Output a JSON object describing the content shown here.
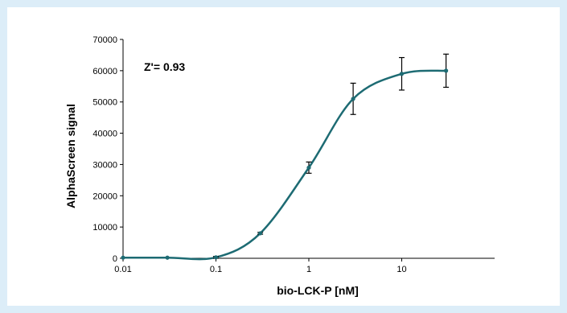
{
  "chart_data": {
    "type": "scatter",
    "title": "",
    "annotation": "Z'= 0.93",
    "xlabel": "bio-LCK-P [nM]",
    "ylabel": "AlphaScreen signal",
    "x_scale": "log",
    "xlim": [
      0.01,
      100
    ],
    "ylim": [
      0,
      70000
    ],
    "x_ticks": [
      0.01,
      0.1,
      1,
      10
    ],
    "x_tick_labels": [
      "0.01",
      "0.1",
      "1",
      "10"
    ],
    "y_ticks": [
      0,
      10000,
      20000,
      30000,
      40000,
      50000,
      60000,
      70000
    ],
    "y_tick_labels": [
      "0",
      "10000",
      "20000",
      "30000",
      "40000",
      "50000",
      "60000",
      "70000"
    ],
    "grid": false,
    "series": [
      {
        "x": [
          0.01,
          0.03,
          0.1,
          0.3,
          1,
          3,
          10,
          30
        ],
        "y": [
          200,
          200,
          300,
          8000,
          29000,
          51000,
          59000,
          60000
        ],
        "error": [
          0,
          0,
          300,
          300,
          1800,
          5000,
          5200,
          5300
        ],
        "fit_curve": true,
        "color": "#1d6b73"
      }
    ]
  }
}
